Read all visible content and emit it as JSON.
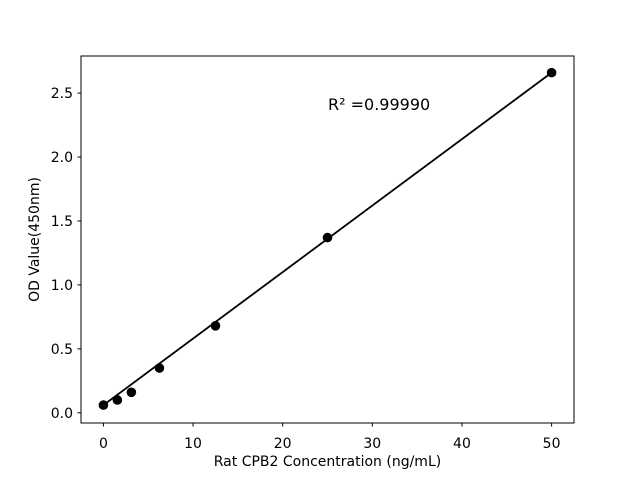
{
  "figure": {
    "background": "#ffffff",
    "foreground": "#000000"
  },
  "chart_data": {
    "type": "scatter",
    "title": "",
    "xlabel": "Rat CPB2 Concentration (ng/mL)",
    "ylabel": "OD Value(450nm)",
    "x": [
      0,
      1.56,
      3.12,
      6.25,
      12.5,
      25,
      50
    ],
    "y": [
      0.06,
      0.1,
      0.16,
      0.35,
      0.68,
      1.37,
      2.66
    ],
    "trendline": true,
    "annotation": {
      "text": "R² =0.99990",
      "x": 25,
      "y": 2.42
    },
    "x_ticks": [
      0,
      10,
      20,
      30,
      40,
      50
    ],
    "x_tick_labels": [
      "0",
      "10",
      "20",
      "30",
      "40",
      "50"
    ],
    "y_ticks": [
      0.0,
      0.5,
      1.0,
      1.5,
      2.0,
      2.5
    ],
    "y_tick_labels": [
      "0.0",
      "0.5",
      "1.0",
      "1.5",
      "2.0",
      "2.5"
    ],
    "xlim": [
      -2.5,
      52.5
    ],
    "ylim": [
      -0.08,
      2.79
    ],
    "grid": false,
    "legend": null,
    "marker_color": "#000000",
    "line_color": "#000000"
  }
}
